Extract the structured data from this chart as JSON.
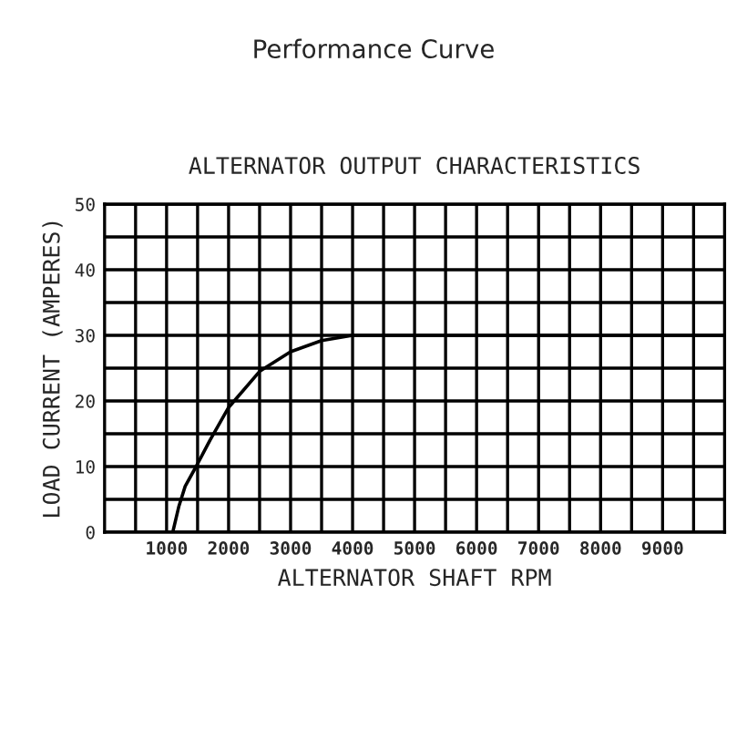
{
  "chart_data": {
    "type": "line",
    "title": "Performance Curve",
    "subtitle": "ALTERNATOR OUTPUT CHARACTERISTICS",
    "xlabel": "ALTERNATOR SHAFT RPM",
    "ylabel": "LOAD CURRENT (AMPERES)",
    "series": [
      {
        "color": "#000000",
        "x": [
          1100,
          1200,
          1300,
          1476,
          1700,
          2000,
          2500,
          3000,
          3500,
          4000,
          10000
        ],
        "values": [
          0,
          4,
          7,
          10,
          14,
          19,
          24.5,
          27.5,
          29.2,
          30,
          30
        ]
      }
    ],
    "xlim": [
      0,
      10000
    ],
    "ylim": [
      0,
      50
    ],
    "xticks": [
      {
        "value": 500,
        "label": null
      },
      1000,
      {
        "value": 1500,
        "label": null
      },
      2000,
      {
        "value": 2500,
        "label": null
      },
      3000,
      {
        "value": 3500,
        "label": null
      },
      4000,
      {
        "value": 4500,
        "label": null
      },
      5000,
      {
        "value": 5500,
        "label": null
      },
      6000,
      {
        "value": 6500,
        "label": null
      },
      7000,
      {
        "value": 7500,
        "label": null
      },
      8000,
      {
        "value": 8500,
        "label": null
      },
      9000,
      {
        "value": 9500,
        "label": null
      }
    ],
    "yticks": [
      0,
      {
        "value": 5,
        "label": null
      },
      10,
      {
        "value": 15,
        "label": null
      },
      20,
      {
        "value": 25,
        "label": null
      },
      30,
      {
        "value": 35,
        "label": null
      },
      40,
      {
        "value": 45,
        "label": null
      },
      50
    ],
    "grid": true,
    "marker": "none",
    "line_style": "solid"
  }
}
